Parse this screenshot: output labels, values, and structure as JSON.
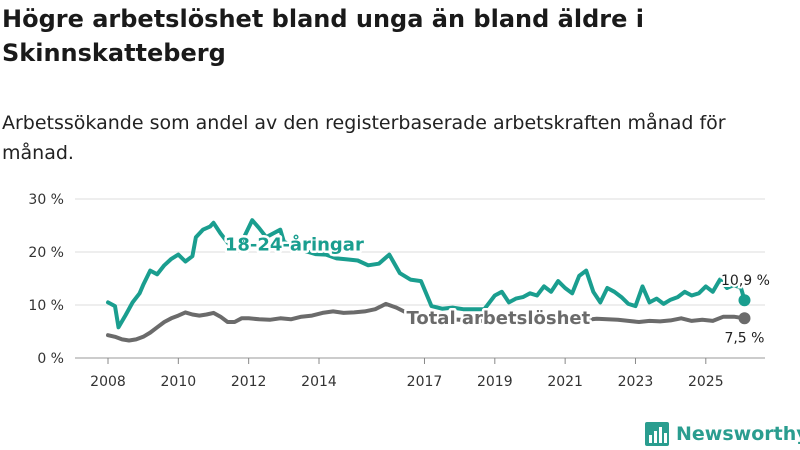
{
  "title": "Högre arbetslöshet bland unga än bland äldre i Skinnskatteberg",
  "subtitle": "Arbetssökande som andel av den registerbaserade arbetskraften månad för månad.",
  "brand": "Newsworthy",
  "colors": {
    "young": "#1a9e8f",
    "total": "#6b6b6b",
    "grid": "#dddddd",
    "brand": "#2a9d8f"
  },
  "chart_data": {
    "type": "line",
    "unit": "%",
    "x_range": [
      2008.0,
      2026.2
    ],
    "ylim": [
      0,
      30
    ],
    "y_ticks": [
      0,
      10,
      20,
      30
    ],
    "y_tick_labels": [
      "0 %",
      "10 %",
      "20 %",
      "30 %"
    ],
    "x_ticks": [
      2008,
      2010,
      2012,
      2014,
      2017,
      2019,
      2021,
      2023,
      2025
    ],
    "x_tick_labels": [
      "2008",
      "2010",
      "2012",
      "2014",
      "2017",
      "2019",
      "2021",
      "2023",
      "2025"
    ],
    "series": [
      {
        "name": "18-24-åringar",
        "color": "#1a9e8f",
        "end_label": "10,9 %",
        "x": [
          2008.0,
          2008.2,
          2008.3,
          2008.5,
          2008.7,
          2008.9,
          2009.0,
          2009.2,
          2009.4,
          2009.6,
          2009.8,
          2010.0,
          2010.2,
          2010.4,
          2010.5,
          2010.7,
          2010.9,
          2011.0,
          2011.2,
          2011.4,
          2011.6,
          2011.8,
          2011.9,
          2012.1,
          2012.3,
          2012.5,
          2012.7,
          2012.9,
          2013.0,
          2013.3,
          2013.6,
          2013.9,
          2014.2,
          2014.5,
          2014.8,
          2015.1,
          2015.4,
          2015.7,
          2016.0,
          2016.3,
          2016.6,
          2016.9,
          2017.2,
          2017.5,
          2017.8,
          2018.1,
          2018.4,
          2018.7,
          2019.0,
          2019.2,
          2019.4,
          2019.6,
          2019.8,
          2020.0,
          2020.2,
          2020.4,
          2020.6,
          2020.8,
          2021.0,
          2021.2,
          2021.4,
          2021.6,
          2021.8,
          2022.0,
          2022.2,
          2022.4,
          2022.6,
          2022.8,
          2023.0,
          2023.2,
          2023.4,
          2023.6,
          2023.8,
          2024.0,
          2024.2,
          2024.4,
          2024.6,
          2024.8,
          2025.0,
          2025.2,
          2025.4,
          2025.6,
          2025.8,
          2026.0,
          2026.1
        ],
        "y": [
          10.5,
          9.8,
          5.8,
          8.1,
          10.5,
          12.2,
          13.8,
          16.5,
          15.8,
          17.5,
          18.7,
          19.5,
          18.2,
          19.2,
          22.8,
          24.2,
          24.8,
          25.5,
          23.5,
          21.8,
          20.2,
          21.5,
          23.2,
          26.0,
          24.5,
          22.8,
          23.5,
          24.2,
          22.0,
          20.8,
          20.2,
          19.6,
          19.5,
          18.8,
          18.6,
          18.4,
          17.5,
          17.8,
          19.5,
          16.0,
          14.8,
          14.5,
          9.8,
          9.3,
          9.5,
          9.2,
          9.2,
          9.2,
          11.8,
          12.5,
          10.5,
          11.2,
          11.5,
          12.2,
          11.8,
          13.5,
          12.5,
          14.5,
          13.2,
          12.2,
          15.5,
          16.5,
          12.5,
          10.5,
          13.2,
          12.5,
          11.5,
          10.2,
          9.8,
          13.5,
          10.5,
          11.2,
          10.2,
          11.0,
          11.5,
          12.5,
          11.8,
          12.2,
          13.5,
          12.5,
          14.8,
          13.2,
          13.8,
          13.2,
          10.9
        ]
      },
      {
        "name": "Total arbetslöshet",
        "color": "#6b6b6b",
        "end_label": "7,5 %",
        "x": [
          2008.0,
          2008.2,
          2008.4,
          2008.6,
          2008.8,
          2009.0,
          2009.2,
          2009.4,
          2009.6,
          2009.8,
          2010.0,
          2010.2,
          2010.4,
          2010.6,
          2010.8,
          2011.0,
          2011.2,
          2011.4,
          2011.6,
          2011.8,
          2012.0,
          2012.3,
          2012.6,
          2012.9,
          2013.2,
          2013.5,
          2013.8,
          2014.1,
          2014.4,
          2014.7,
          2015.0,
          2015.3,
          2015.6,
          2015.9,
          2016.2,
          2016.5,
          2016.8,
          2017.1,
          2017.4,
          2017.7,
          2018.0,
          2018.3,
          2018.6,
          2018.9,
          2019.2,
          2019.5,
          2019.8,
          2020.1,
          2020.4,
          2020.7,
          2021.0,
          2021.3,
          2021.6,
          2021.9,
          2022.2,
          2022.5,
          2022.8,
          2023.1,
          2023.4,
          2023.7,
          2024.0,
          2024.3,
          2024.6,
          2024.9,
          2025.2,
          2025.5,
          2025.8,
          2026.1
        ],
        "y": [
          4.3,
          4.0,
          3.5,
          3.3,
          3.5,
          4.0,
          4.8,
          5.8,
          6.8,
          7.5,
          8.0,
          8.6,
          8.2,
          8.0,
          8.2,
          8.5,
          7.8,
          6.8,
          6.8,
          7.5,
          7.5,
          7.3,
          7.2,
          7.5,
          7.3,
          7.8,
          8.0,
          8.5,
          8.8,
          8.5,
          8.6,
          8.8,
          9.2,
          10.2,
          9.5,
          8.5,
          8.0,
          7.8,
          7.5,
          7.3,
          7.2,
          7.1,
          7.0,
          7.2,
          7.5,
          7.3,
          7.4,
          7.2,
          7.5,
          7.3,
          7.4,
          7.3,
          7.2,
          7.4,
          7.3,
          7.2,
          7.0,
          6.8,
          7.0,
          6.9,
          7.1,
          7.5,
          7.0,
          7.2,
          7.0,
          7.8,
          7.8,
          7.5
        ]
      }
    ]
  }
}
